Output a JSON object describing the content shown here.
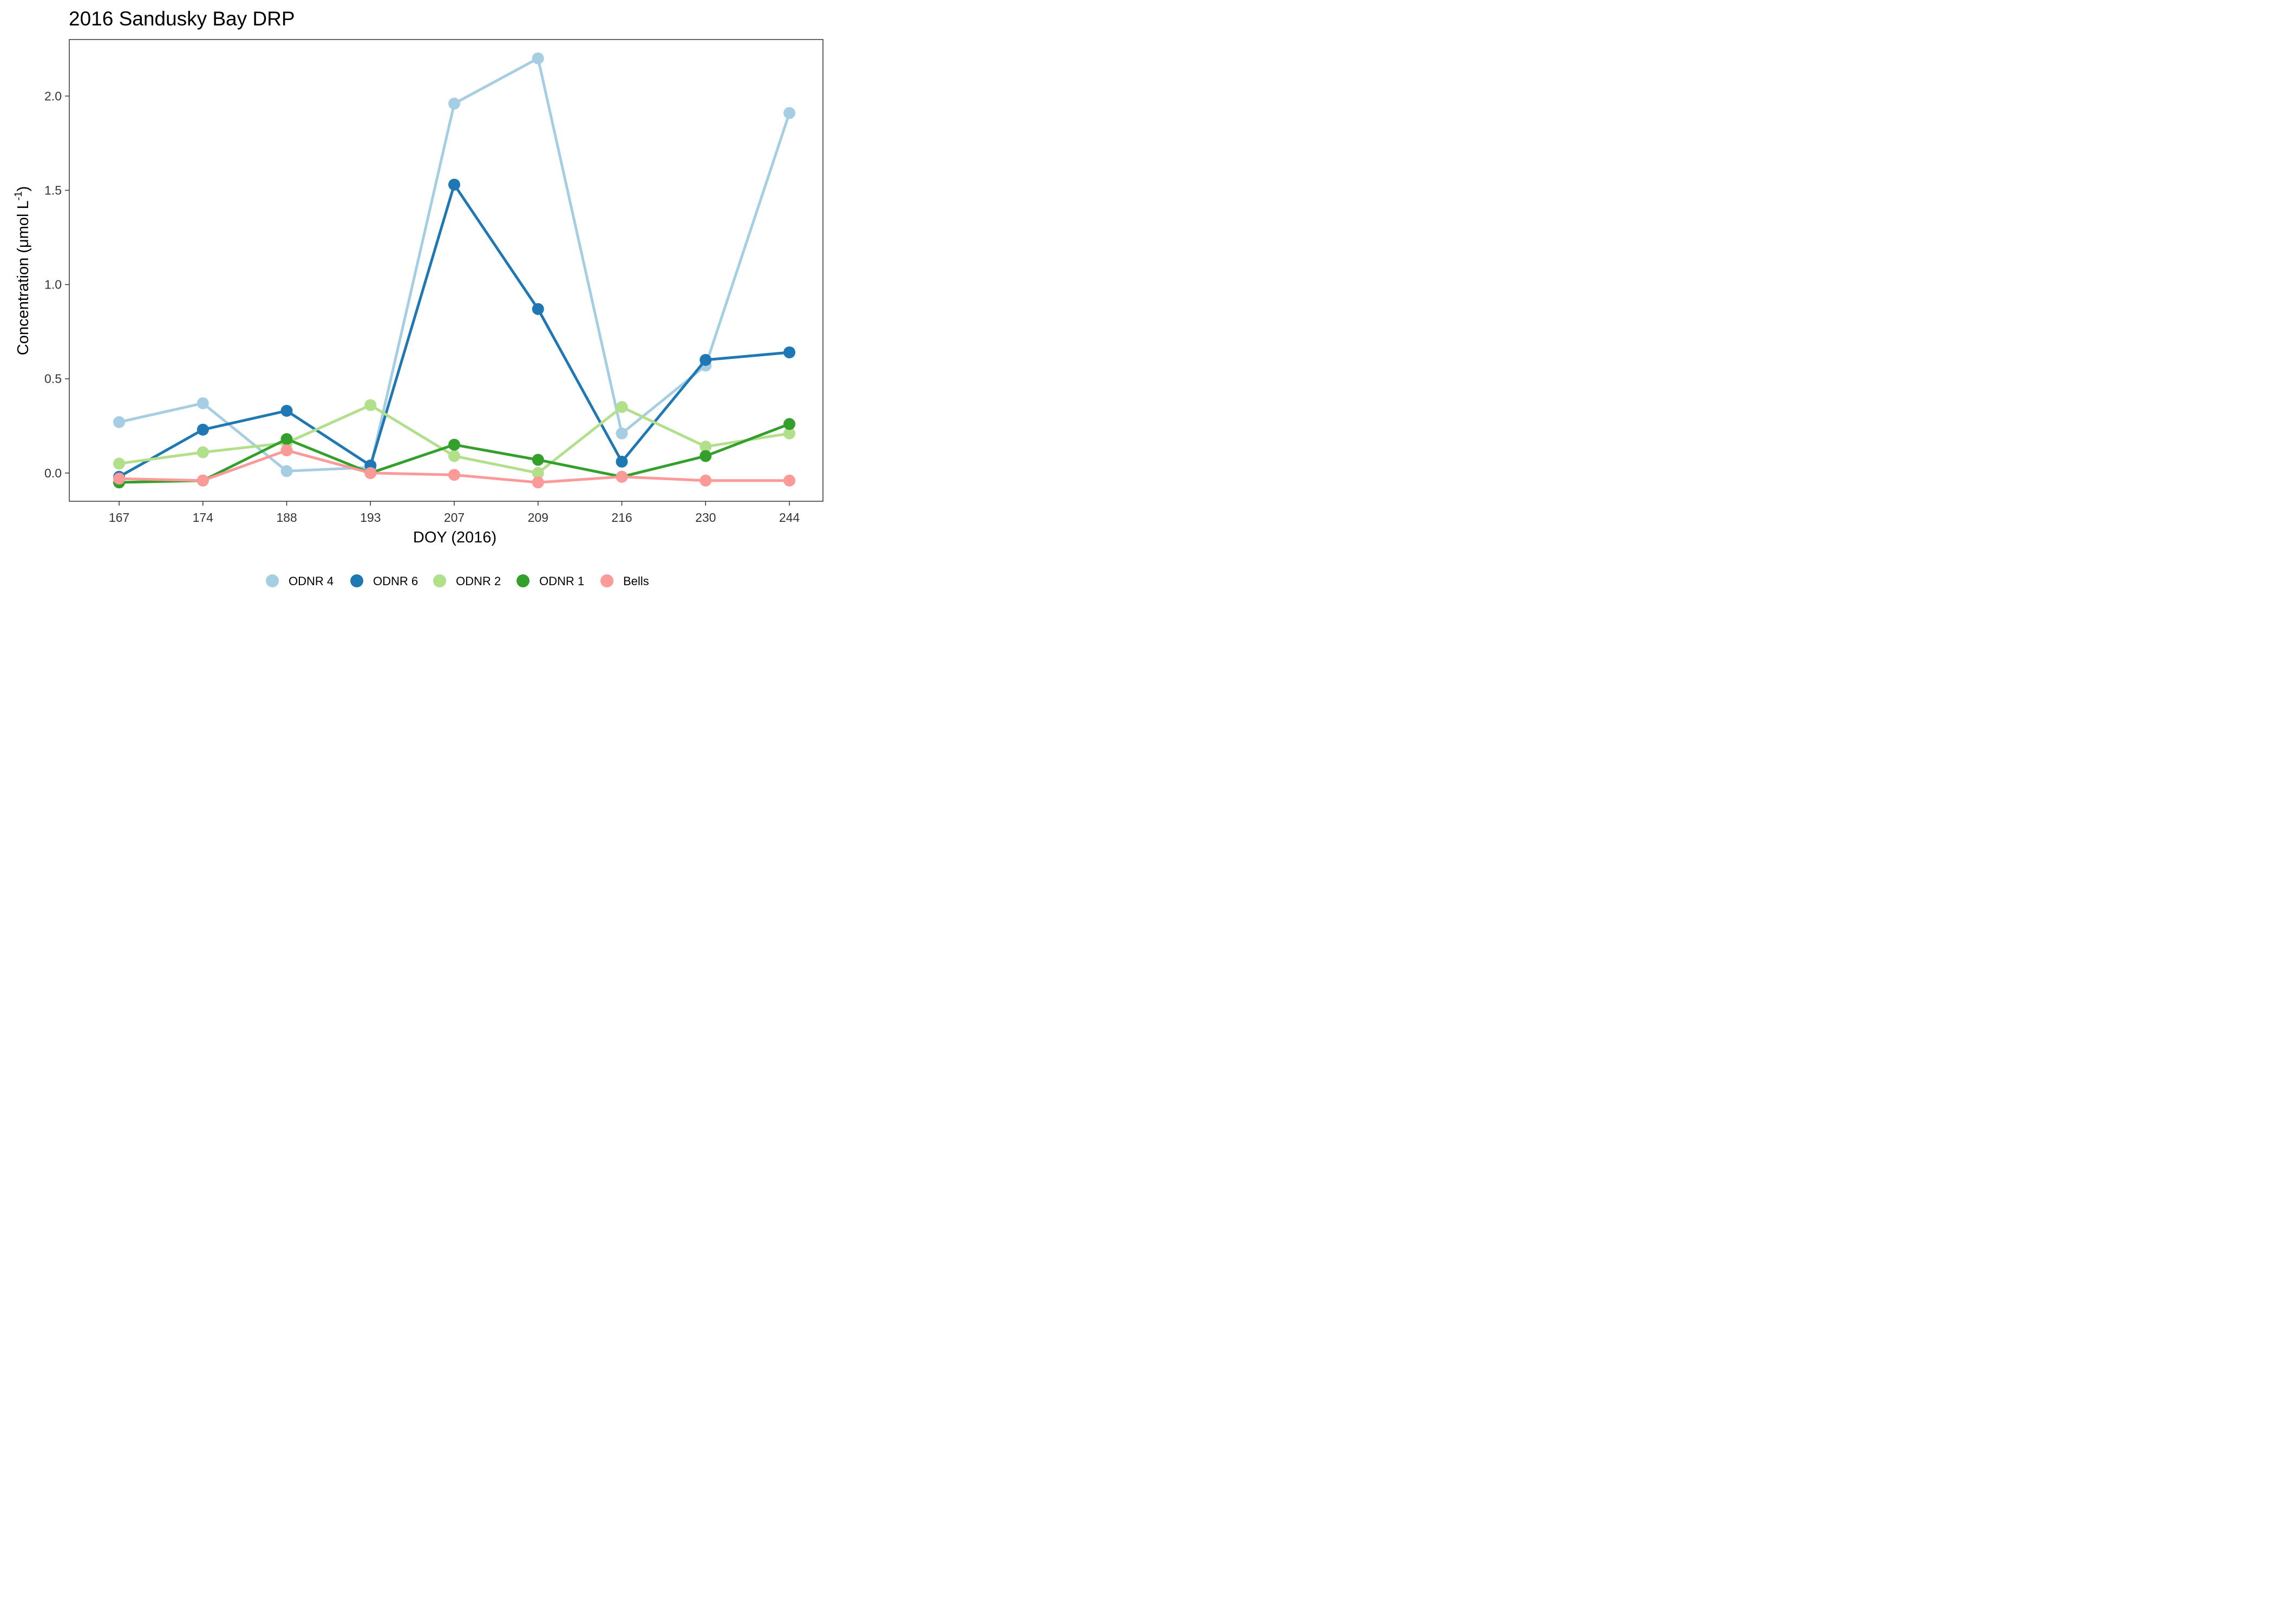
{
  "chart_data": {
    "type": "line",
    "title": "2016 Sandusky Bay DRP",
    "xlabel": "DOY (2016)",
    "ylabel_main": "Concentration (μmol L",
    "ylabel_sup": "-1",
    "ylabel_close": ")",
    "categories": [
      "167",
      "174",
      "188",
      "193",
      "207",
      "209",
      "216",
      "230",
      "244"
    ],
    "ylim": [
      -0.15,
      2.3
    ],
    "yticks": [
      0.0,
      0.5,
      1.0,
      1.5,
      2.0
    ],
    "ytick_labels": [
      "0.0",
      "0.5",
      "1.0",
      "1.5",
      "2.0"
    ],
    "grid": false,
    "legend_position": "bottom",
    "series": [
      {
        "name": "ODNR 4",
        "color": "#a6cee3",
        "values": [
          0.27,
          0.37,
          0.01,
          0.03,
          1.96,
          2.2,
          0.21,
          0.57,
          1.91
        ]
      },
      {
        "name": "ODNR 6",
        "color": "#1f78b4",
        "values": [
          -0.02,
          0.23,
          0.33,
          0.04,
          1.53,
          0.87,
          0.06,
          0.6,
          0.64
        ]
      },
      {
        "name": "ODNR 2",
        "color": "#b2df8a",
        "values": [
          0.05,
          0.11,
          0.16,
          0.36,
          0.09,
          0.0,
          0.35,
          0.14,
          0.21
        ]
      },
      {
        "name": "ODNR 1",
        "color": "#33a02c",
        "values": [
          -0.05,
          -0.04,
          0.18,
          0.0,
          0.15,
          0.07,
          -0.02,
          0.09,
          0.26
        ]
      },
      {
        "name": "Bells",
        "color": "#fb9a99",
        "values": [
          -0.03,
          -0.04,
          0.12,
          0.0,
          -0.01,
          -0.05,
          -0.02,
          -0.04,
          -0.04
        ]
      }
    ]
  }
}
